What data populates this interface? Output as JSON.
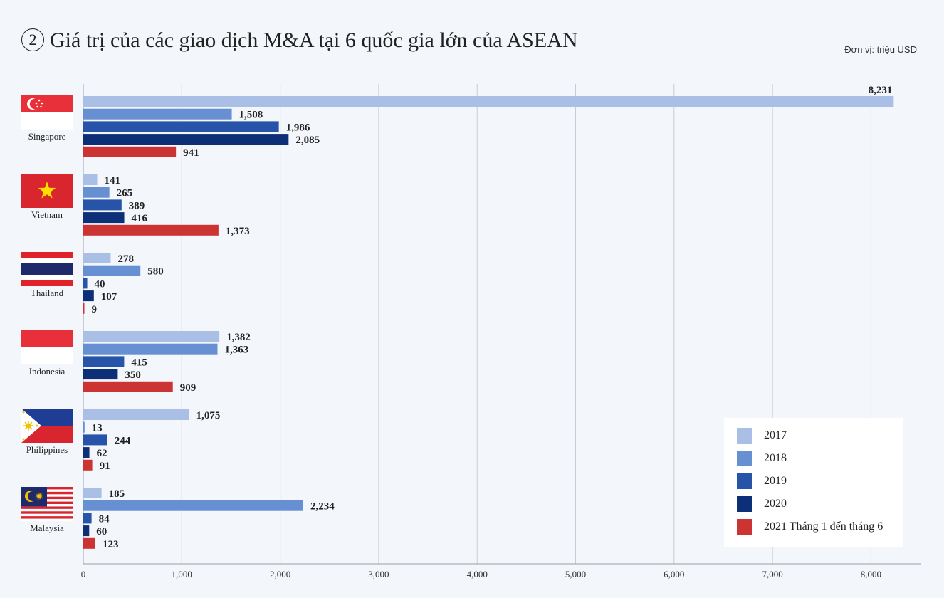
{
  "header": {
    "number": "2",
    "title": "Giá trị của các giao dịch M&A tại 6 quốc gia lớn của ASEAN",
    "unit": "Đơn vị: triệu USD"
  },
  "colors": {
    "2017": "#a9bfe6",
    "2018": "#6790d3",
    "2019": "#2754a8",
    "2020": "#0d2f77",
    "2021": "#cc3333",
    "grid": "#c8ccd2",
    "background": "#f3f6fa"
  },
  "chart_data": {
    "type": "bar",
    "orientation": "horizontal",
    "title": "Giá trị của các giao dịch M&A tại 6 quốc gia lớn của ASEAN",
    "unit": "Đơn vị: triệu USD",
    "categories": [
      "Singapore",
      "Vietnam",
      "Thailand",
      "Indonesia",
      "Philippines",
      "Malaysia"
    ],
    "series": [
      {
        "name": "2017",
        "values": [
          8231,
          141,
          278,
          1382,
          1075,
          185
        ]
      },
      {
        "name": "2018",
        "values": [
          1508,
          265,
          580,
          1363,
          13,
          2234
        ]
      },
      {
        "name": "2019",
        "values": [
          1986,
          389,
          40,
          415,
          244,
          84
        ]
      },
      {
        "name": "2020",
        "values": [
          2085,
          416,
          107,
          350,
          62,
          60
        ]
      },
      {
        "name": "2021 Tháng 1 đến tháng 6",
        "values": [
          941,
          1373,
          9,
          909,
          91,
          123
        ]
      }
    ],
    "value_labels": [
      [
        "8,231",
        "141",
        "278",
        "1,382",
        "1,075",
        "185"
      ],
      [
        "1,508",
        "265",
        "580",
        "1,363",
        "13",
        "2,234"
      ],
      [
        "1,986",
        "389",
        "40",
        "415",
        "244",
        "84"
      ],
      [
        "2,085",
        "416",
        "107",
        "350",
        "62",
        "60"
      ],
      [
        "941",
        "1,373",
        "9",
        "909",
        "91",
        "123"
      ]
    ],
    "xticks": [
      0,
      1000,
      2000,
      3000,
      4000,
      5000,
      6000,
      7000,
      8000
    ],
    "xtick_labels": [
      "0",
      "1,000",
      "2,000",
      "3,000",
      "4,000",
      "5,000",
      "6,000",
      "7,000",
      "8,000"
    ],
    "xlim": [
      0,
      8500
    ],
    "grid": true,
    "legend_position": "bottom-right",
    "flags": [
      "singapore-flag",
      "vietnam-flag",
      "thailand-flag",
      "indonesia-flag",
      "philippines-flag",
      "malaysia-flag"
    ]
  }
}
